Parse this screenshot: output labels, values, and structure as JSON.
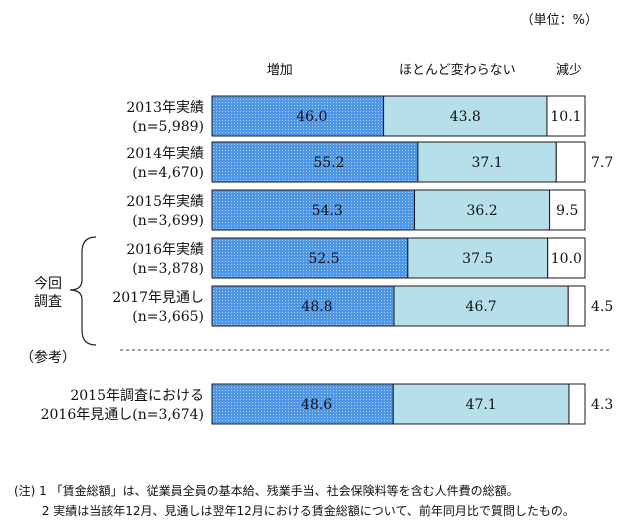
{
  "unit_label": "（単位：%）",
  "reference_label": "（参考）",
  "group_label_line1": "今回",
  "group_label_line2": "調査",
  "notes": [
    "(注) 1 「賃金総額」は、従業員全員の基本給、残業手当、社会保険料等を含む人件費の総額。",
    "　　 2 実績は当該年12月、見通しは翌年12月における賃金総額について、前年同月比で質問したもの。"
  ],
  "colors": {
    "increase": "#4e96e6",
    "same": "#b7dfe9",
    "decrease": "#ffffff",
    "border": "#1a1a1a"
  },
  "chart_data": {
    "type": "bar",
    "orientation": "horizontal",
    "stacked": true,
    "xlim": [
      0,
      100
    ],
    "categories": [
      [
        "2013年実績",
        "(n=5,989)"
      ],
      [
        "2014年実績",
        "(n=4,670)"
      ],
      [
        "2015年実績",
        "(n=3,699)"
      ],
      [
        "2016年実績",
        "(n=3,878)"
      ],
      [
        "2017年見通し",
        "(n=3,665)"
      ],
      [
        "2015年調査における",
        "2016年見通し(n=3,674)"
      ]
    ],
    "series": [
      {
        "name": "増加",
        "values": [
          46.0,
          55.2,
          54.3,
          52.5,
          48.8,
          48.6
        ]
      },
      {
        "name": "ほとんど変わらない",
        "values": [
          43.8,
          37.1,
          36.2,
          37.5,
          46.7,
          47.1
        ]
      },
      {
        "name": "減少",
        "values": [
          10.1,
          7.7,
          9.5,
          10.0,
          4.5,
          4.3
        ]
      }
    ],
    "legend": "top"
  }
}
